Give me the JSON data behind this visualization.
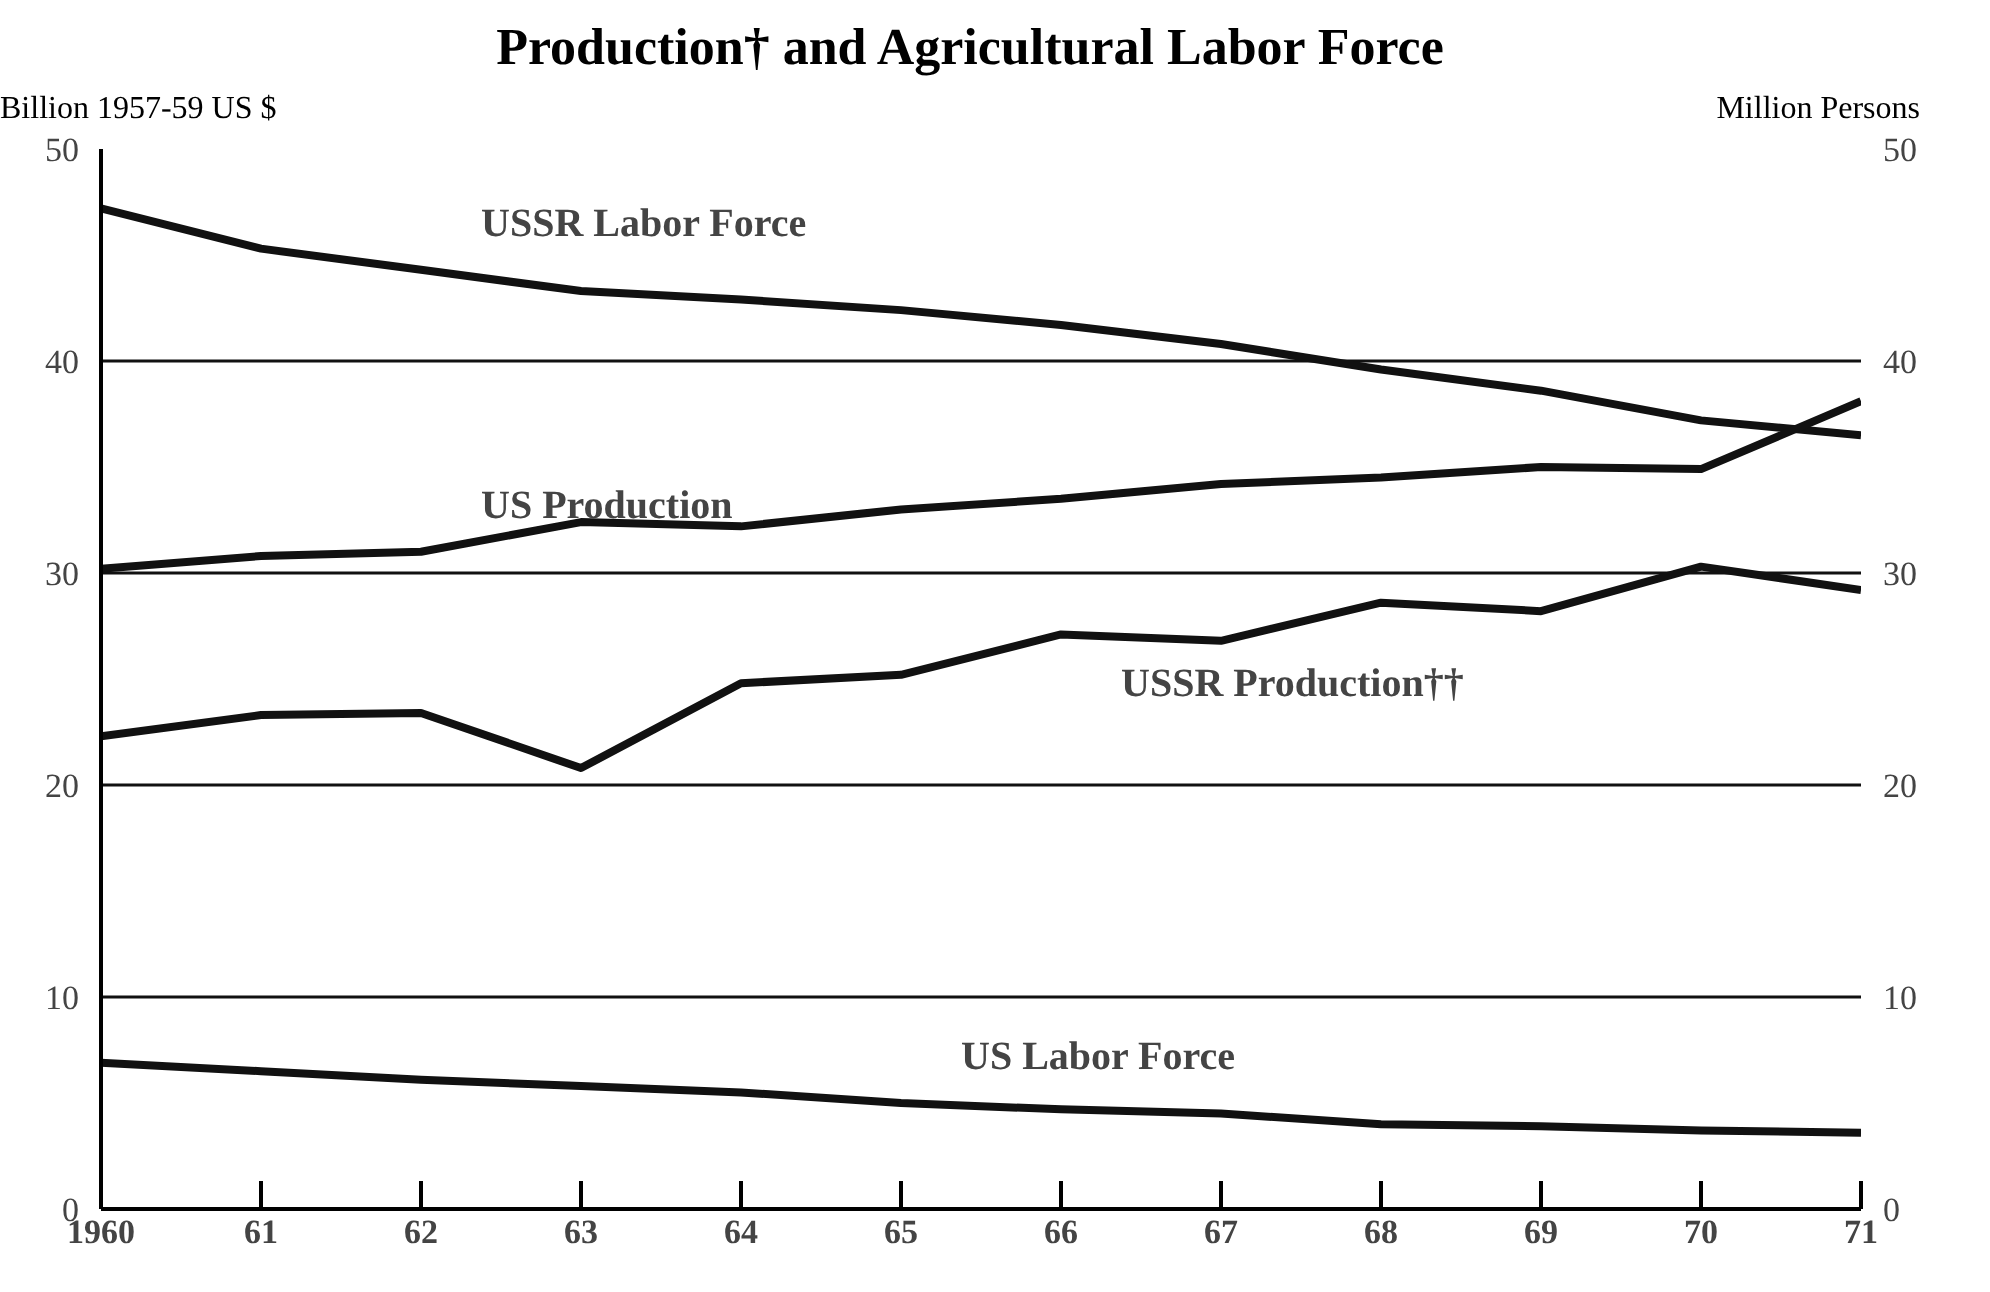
{
  "chart_data": {
    "type": "line",
    "title": "Production† and Agricultural Labor Force",
    "ylabel": "Billion 1957-59 US $",
    "y2label": "Million Persons",
    "x": [
      1960,
      1961,
      1962,
      1963,
      1964,
      1965,
      1966,
      1967,
      1968,
      1969,
      1970,
      1971
    ],
    "xlim": [
      1960,
      1971
    ],
    "xticks": [
      {
        "value": 1960,
        "label": "1960"
      },
      {
        "value": 1961,
        "label": "61"
      },
      {
        "value": 1962,
        "label": "62"
      },
      {
        "value": 1963,
        "label": "63"
      },
      {
        "value": 1964,
        "label": "64"
      },
      {
        "value": 1965,
        "label": "65"
      },
      {
        "value": 1966,
        "label": "66"
      },
      {
        "value": 1967,
        "label": "67"
      },
      {
        "value": 1968,
        "label": "68"
      },
      {
        "value": 1969,
        "label": "69"
      },
      {
        "value": 1970,
        "label": "70"
      },
      {
        "value": 1971,
        "label": "71"
      }
    ],
    "ylim": [
      0,
      50
    ],
    "yticks": [
      0,
      10,
      20,
      30,
      40,
      50
    ],
    "y2lim": [
      0,
      50
    ],
    "y2ticks": [
      0,
      10,
      20,
      30,
      40,
      50
    ],
    "grid": "y",
    "legend": false,
    "line_style": "solid",
    "marker": "none",
    "series": [
      {
        "name": "USSR Labor Force",
        "color": "#111111",
        "axis": "y2",
        "values": [
          47.2,
          45.3,
          44.3,
          43.3,
          42.9,
          42.4,
          41.7,
          40.8,
          39.6,
          38.6,
          37.2,
          36.5
        ]
      },
      {
        "name": "US Production",
        "color": "#111111",
        "values": [
          30.2,
          30.8,
          31.0,
          32.4,
          32.2,
          33.0,
          33.5,
          34.2,
          34.5,
          35.0,
          34.9,
          38.1
        ]
      },
      {
        "name": "USSR Production††",
        "color": "#111111",
        "values": [
          22.3,
          23.3,
          23.4,
          20.8,
          24.8,
          25.2,
          27.1,
          26.8,
          28.6,
          28.2,
          30.3,
          29.2
        ]
      },
      {
        "name": "US Labor Force",
        "color": "#111111",
        "axis": "y2",
        "values": [
          6.9,
          6.5,
          6.1,
          5.8,
          5.5,
          5.0,
          4.7,
          4.5,
          4.0,
          3.9,
          3.7,
          3.6
        ]
      }
    ]
  }
}
